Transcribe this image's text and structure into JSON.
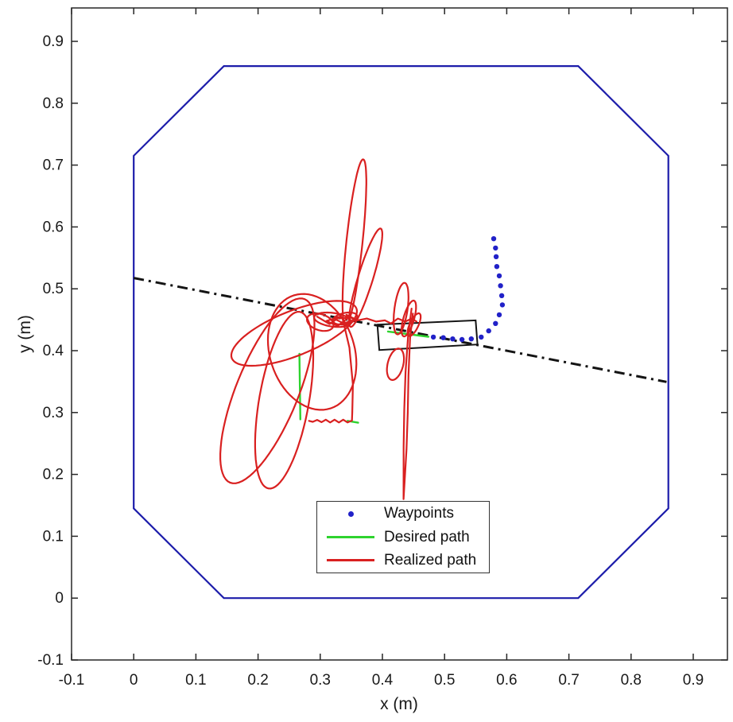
{
  "figure": {
    "background": "#ffffff"
  },
  "chart_data": {
    "type": "line",
    "title": "",
    "xlabel": "x (m)",
    "ylabel": "y (m)",
    "xlim": [
      -0.1,
      0.955
    ],
    "ylim": [
      -0.1,
      0.954
    ],
    "grid": false,
    "tick_color": "#262626",
    "xticks": {
      "values": [
        -0.1,
        0,
        0.1,
        0.2,
        0.3,
        0.4,
        0.5,
        0.6,
        0.7,
        0.8,
        0.9
      ],
      "labels": [
        "-0.1",
        "0",
        "0.1",
        "0.2",
        "0.3",
        "0.4",
        "0.5",
        "0.6",
        "0.7",
        "0.8",
        "0.9"
      ]
    },
    "yticks": {
      "values": [
        -0.1,
        0,
        0.1,
        0.2,
        0.3,
        0.4,
        0.5,
        0.6,
        0.7,
        0.8,
        0.9
      ],
      "labels": [
        "-0.1",
        "0",
        "0.1",
        "0.2",
        "0.3",
        "0.4",
        "0.5",
        "0.6",
        "0.7",
        "0.8",
        "0.9"
      ]
    },
    "legend": {
      "position": "inside-bottom-center",
      "entries": [
        {
          "label": "Waypoints",
          "marker": "dot",
          "color": "#2121c8"
        },
        {
          "label": "Desired path",
          "marker": "line",
          "color": "#2ed32e"
        },
        {
          "label": "Realized path",
          "marker": "line",
          "color": "#d92020"
        }
      ]
    },
    "series": {
      "boundary": {
        "name": "arena-boundary-octagon",
        "color": "#1c1caa",
        "width": 2.2,
        "closed": true,
        "points": [
          [
            0.145,
            0
          ],
          [
            0.715,
            0
          ],
          [
            0.86,
            0.145
          ],
          [
            0.86,
            0.715
          ],
          [
            0.715,
            0.86
          ],
          [
            0.145,
            0.86
          ],
          [
            0,
            0.715
          ],
          [
            0,
            0.145
          ]
        ]
      },
      "reference_line": {
        "name": "dash-dot-reference-line",
        "color": "#141414",
        "width": 3,
        "style": "dash-dot",
        "points": [
          [
            0.0,
            0.5175
          ],
          [
            0.857,
            0.3495
          ]
        ]
      },
      "vehicle_box": {
        "name": "robot-body-rectangle",
        "color": "#141414",
        "width": 2,
        "closed": true,
        "points": [
          [
            0.392,
            0.442
          ],
          [
            0.55,
            0.449
          ],
          [
            0.553,
            0.41
          ],
          [
            0.395,
            0.401
          ]
        ]
      },
      "waypoints": {
        "name": "waypoints",
        "color": "#2121c8",
        "dot_radius": 3.2,
        "points": [
          [
            0.579,
            0.581
          ],
          [
            0.582,
            0.566
          ],
          [
            0.583,
            0.552
          ],
          [
            0.584,
            0.536
          ],
          [
            0.588,
            0.521
          ],
          [
            0.59,
            0.505
          ],
          [
            0.592,
            0.489
          ],
          [
            0.593,
            0.474
          ],
          [
            0.588,
            0.458
          ],
          [
            0.582,
            0.444
          ],
          [
            0.571,
            0.432
          ],
          [
            0.559,
            0.422
          ],
          [
            0.543,
            0.419
          ],
          [
            0.528,
            0.418
          ],
          [
            0.513,
            0.419
          ],
          [
            0.498,
            0.421
          ],
          [
            0.482,
            0.422
          ]
        ]
      },
      "desired_path": {
        "name": "desired-path",
        "color": "#2ed32e",
        "width": 2.4,
        "segments": [
          [
            [
              0.409,
              0.431
            ],
            [
              0.474,
              0.4225
            ]
          ],
          [
            [
              0.2665,
              0.395
            ],
            [
              0.268,
              0.289
            ]
          ],
          [
            [
              0.344,
              0.2865
            ],
            [
              0.361,
              0.2835
            ]
          ]
        ]
      },
      "realized_path": {
        "name": "realized-path",
        "color": "#d92020",
        "width": 2.2,
        "ellipses": [
          [
            0.215,
            0.335,
            0.05,
            0.16,
            -22
          ],
          [
            0.242,
            0.32,
            0.04,
            0.145,
            -10
          ],
          [
            0.287,
            0.398,
            0.068,
            0.096,
            18
          ],
          [
            0.258,
            0.428,
            0.108,
            0.036,
            22
          ],
          [
            0.355,
            0.575,
            0.013,
            0.135,
            -6
          ],
          [
            0.373,
            0.518,
            0.012,
            0.083,
            -17
          ],
          [
            0.32,
            0.45,
            0.03,
            0.011,
            -8
          ],
          [
            0.34,
            0.452,
            0.02,
            0.009,
            12
          ],
          [
            0.3,
            0.446,
            0.022,
            0.013,
            -18
          ],
          [
            0.43,
            0.468,
            0.0105,
            0.042,
            -8
          ],
          [
            0.4425,
            0.452,
            0.0085,
            0.03,
            -16
          ],
          [
            0.421,
            0.378,
            0.0125,
            0.026,
            -14
          ],
          [
            0.451,
            0.442,
            0.007,
            0.02,
            -25
          ]
        ],
        "polylines": [
          [
            [
              0.295,
              0.455
            ],
            [
              0.315,
              0.443
            ],
            [
              0.332,
              0.455
            ],
            [
              0.31,
              0.448
            ],
            [
              0.328,
              0.44
            ],
            [
              0.345,
              0.453
            ],
            [
              0.322,
              0.452
            ],
            [
              0.338,
              0.444
            ],
            [
              0.355,
              0.45
            ],
            [
              0.342,
              0.458
            ],
            [
              0.36,
              0.449
            ],
            [
              0.375,
              0.452
            ],
            [
              0.39,
              0.447
            ],
            [
              0.404,
              0.449
            ],
            [
              0.414,
              0.444
            ]
          ],
          [
            [
              0.336,
              0.452
            ],
            [
              0.347,
              0.405
            ],
            [
              0.3525,
              0.345
            ],
            [
              0.3515,
              0.3
            ],
            [
              0.351,
              0.287
            ],
            [
              0.344,
              0.284
            ],
            [
              0.337,
              0.2885
            ],
            [
              0.33,
              0.284
            ],
            [
              0.323,
              0.2885
            ],
            [
              0.316,
              0.284
            ],
            [
              0.309,
              0.2885
            ],
            [
              0.302,
              0.2845
            ],
            [
              0.295,
              0.288
            ],
            [
              0.288,
              0.285
            ],
            [
              0.282,
              0.2865
            ]
          ],
          [
            [
              0.447,
              0.468
            ],
            [
              0.4415,
              0.425
            ],
            [
              0.4372,
              0.365
            ],
            [
              0.4352,
              0.305
            ],
            [
              0.4342,
              0.245
            ],
            [
              0.434,
              0.16
            ],
            [
              0.4388,
              0.24
            ],
            [
              0.4408,
              0.3
            ],
            [
              0.442,
              0.36
            ],
            [
              0.4445,
              0.42
            ],
            [
              0.449,
              0.46
            ]
          ],
          [
            [
              0.414,
              0.444
            ],
            [
              0.425,
              0.452
            ],
            [
              0.437,
              0.447
            ],
            [
              0.447,
              0.452
            ],
            [
              0.455,
              0.447
            ]
          ]
        ]
      }
    }
  }
}
